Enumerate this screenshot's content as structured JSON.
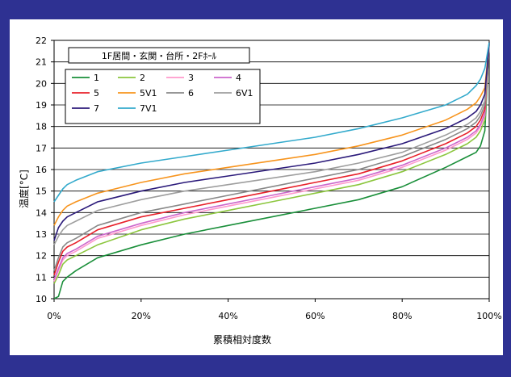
{
  "chart_data": {
    "type": "line",
    "title": "",
    "legend_title": "1F居間・玄関・台所・2Fﾎｰﾙ",
    "xlabel": "累積相対度数",
    "ylabel": "温度[°C]",
    "xlim": [
      0,
      100
    ],
    "ylim": [
      10,
      22
    ],
    "x_ticks": [
      "0%",
      "20%",
      "40%",
      "60%",
      "80%",
      "100%"
    ],
    "y_ticks": [
      "10",
      "11",
      "12",
      "13",
      "14",
      "15",
      "16",
      "17",
      "18",
      "19",
      "20",
      "21",
      "22"
    ],
    "grid": "horizontal",
    "legend_position": "top-left",
    "x_units": "percent",
    "series": [
      {
        "name": "1",
        "color": "#1a8f3a",
        "x": [
          0,
          1,
          2,
          3,
          5,
          10,
          20,
          30,
          40,
          50,
          60,
          70,
          80,
          90,
          95,
          97,
          98,
          99,
          100
        ],
        "y": [
          10.0,
          10.1,
          10.8,
          11.0,
          11.3,
          11.9,
          12.5,
          13.0,
          13.4,
          13.8,
          14.2,
          14.6,
          15.2,
          16.1,
          16.6,
          16.8,
          17.1,
          17.8,
          21.9
        ]
      },
      {
        "name": "2",
        "color": "#8cc63e",
        "x": [
          0,
          1,
          2,
          3,
          5,
          10,
          20,
          30,
          40,
          50,
          60,
          70,
          80,
          90,
          95,
          97,
          98,
          99,
          100
        ],
        "y": [
          10.7,
          11.1,
          11.6,
          11.8,
          12.0,
          12.5,
          13.2,
          13.7,
          14.1,
          14.5,
          14.9,
          15.3,
          15.9,
          16.7,
          17.2,
          17.5,
          17.8,
          18.3,
          21.9
        ]
      },
      {
        "name": "3",
        "color": "#ff99cc",
        "x": [
          0,
          1,
          2,
          3,
          5,
          10,
          20,
          30,
          40,
          50,
          60,
          70,
          80,
          90,
          95,
          97,
          98,
          99,
          100
        ],
        "y": [
          10.8,
          11.3,
          11.8,
          12.0,
          12.2,
          12.8,
          13.4,
          13.9,
          14.3,
          14.7,
          15.1,
          15.5,
          16.1,
          16.9,
          17.4,
          17.7,
          18.0,
          18.5,
          21.9
        ]
      },
      {
        "name": "4",
        "color": "#cc66cc",
        "x": [
          0,
          1,
          2,
          3,
          5,
          10,
          20,
          30,
          40,
          50,
          60,
          70,
          80,
          90,
          95,
          97,
          98,
          99,
          100
        ],
        "y": [
          10.9,
          11.4,
          11.9,
          12.1,
          12.3,
          12.9,
          13.5,
          14.0,
          14.4,
          14.8,
          15.2,
          15.6,
          16.2,
          17.0,
          17.5,
          17.8,
          18.1,
          18.6,
          21.9
        ]
      },
      {
        "name": "5",
        "color": "#e8202a",
        "x": [
          0,
          1,
          2,
          3,
          5,
          10,
          20,
          30,
          40,
          50,
          60,
          70,
          80,
          90,
          95,
          97,
          98,
          99,
          100
        ],
        "y": [
          11.1,
          11.7,
          12.2,
          12.4,
          12.6,
          13.2,
          13.8,
          14.2,
          14.6,
          15.0,
          15.4,
          15.8,
          16.4,
          17.2,
          17.7,
          18.0,
          18.3,
          18.8,
          21.9
        ]
      },
      {
        "name": "5V1",
        "color": "#f7941d",
        "x": [
          0,
          1,
          2,
          3,
          5,
          10,
          20,
          30,
          40,
          50,
          60,
          70,
          80,
          90,
          95,
          97,
          98,
          99,
          100
        ],
        "y": [
          13.4,
          13.8,
          14.1,
          14.3,
          14.5,
          14.9,
          15.4,
          15.8,
          16.1,
          16.4,
          16.7,
          17.1,
          17.6,
          18.3,
          18.8,
          19.1,
          19.4,
          19.8,
          21.9
        ]
      },
      {
        "name": "6",
        "color": "#888888",
        "x": [
          0,
          1,
          2,
          3,
          5,
          10,
          20,
          30,
          40,
          50,
          60,
          70,
          80,
          90,
          95,
          97,
          98,
          99,
          100
        ],
        "y": [
          11.3,
          11.9,
          12.4,
          12.6,
          12.8,
          13.4,
          14.0,
          14.4,
          14.8,
          15.2,
          15.6,
          16.0,
          16.6,
          17.4,
          17.9,
          18.2,
          18.5,
          19.0,
          21.9
        ]
      },
      {
        "name": "6V1",
        "color": "#9e9e9e",
        "x": [
          0,
          1,
          2,
          3,
          5,
          10,
          20,
          30,
          40,
          50,
          60,
          70,
          80,
          90,
          95,
          97,
          98,
          99,
          100
        ],
        "y": [
          12.5,
          12.9,
          13.2,
          13.4,
          13.6,
          14.1,
          14.6,
          15.0,
          15.3,
          15.6,
          15.9,
          16.3,
          16.8,
          17.6,
          18.1,
          18.4,
          18.7,
          19.2,
          21.9
        ]
      },
      {
        "name": "7",
        "color": "#2b1a7a",
        "x": [
          0,
          1,
          2,
          3,
          5,
          10,
          20,
          30,
          40,
          50,
          60,
          70,
          80,
          90,
          95,
          97,
          98,
          99,
          100
        ],
        "y": [
          12.7,
          13.3,
          13.6,
          13.8,
          14.0,
          14.5,
          15.0,
          15.4,
          15.7,
          16.0,
          16.3,
          16.7,
          17.2,
          17.9,
          18.4,
          18.7,
          19.0,
          19.5,
          21.9
        ]
      },
      {
        "name": "7V1",
        "color": "#33aacc",
        "x": [
          0,
          1,
          2,
          3,
          5,
          10,
          20,
          30,
          40,
          50,
          60,
          70,
          80,
          90,
          95,
          97,
          98,
          99,
          100
        ],
        "y": [
          14.5,
          14.8,
          15.1,
          15.3,
          15.5,
          15.9,
          16.3,
          16.6,
          16.9,
          17.2,
          17.5,
          17.9,
          18.4,
          19.0,
          19.5,
          19.9,
          20.2,
          20.7,
          21.9
        ]
      }
    ]
  }
}
